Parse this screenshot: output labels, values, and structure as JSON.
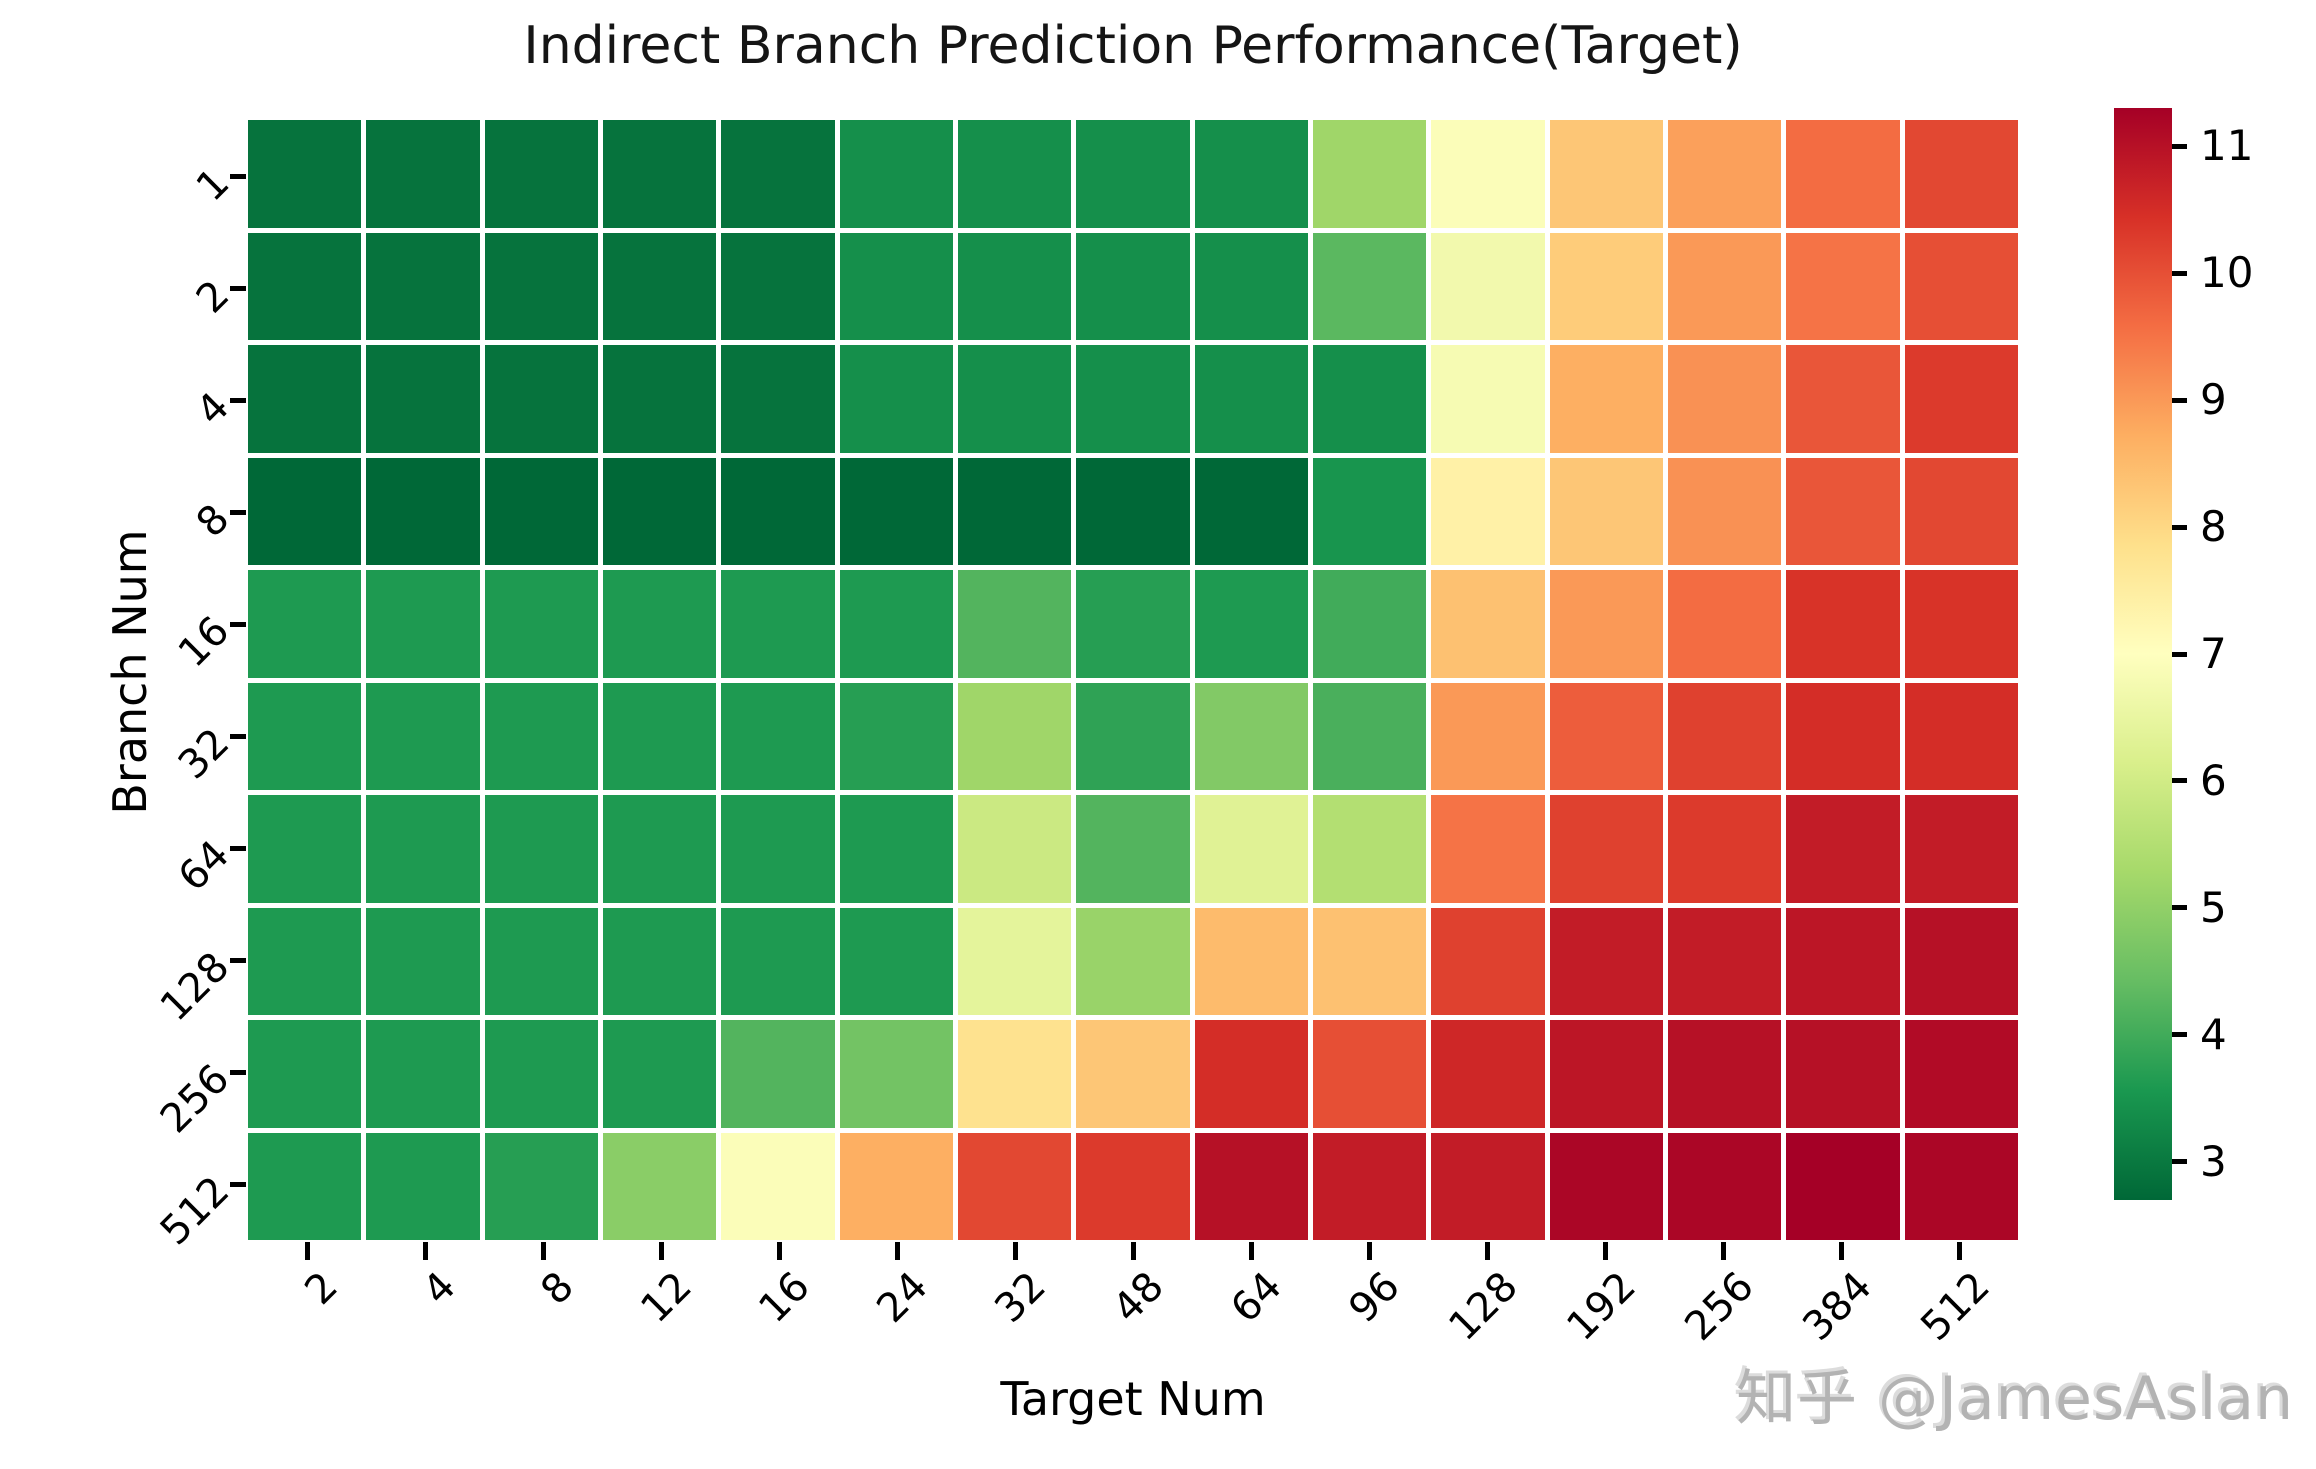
{
  "title": "Indirect Branch Prediction Performance(Target)",
  "watermark": "知乎 @JamesAslan",
  "chart_data": {
    "type": "heatmap",
    "title": "Indirect Branch Prediction Performance(Target)",
    "xlabel": "Target Num",
    "ylabel": "Branch Num",
    "x_categories": [
      "2",
      "4",
      "8",
      "12",
      "16",
      "24",
      "32",
      "48",
      "64",
      "96",
      "128",
      "192",
      "256",
      "384",
      "512"
    ],
    "y_categories": [
      "1",
      "2",
      "4",
      "8",
      "16",
      "32",
      "64",
      "128",
      "256",
      "512"
    ],
    "values": [
      [
        2.9,
        2.9,
        2.9,
        2.9,
        2.9,
        3.4,
        3.4,
        3.4,
        3.4,
        5.2,
        6.9,
        8.3,
        8.9,
        9.6,
        10.1
      ],
      [
        2.9,
        2.9,
        2.9,
        2.9,
        2.9,
        3.4,
        3.4,
        3.4,
        3.4,
        4.3,
        6.7,
        8.2,
        9.0,
        9.5,
        10.0
      ],
      [
        2.9,
        2.9,
        2.9,
        2.9,
        2.9,
        3.4,
        3.4,
        3.4,
        3.4,
        3.4,
        6.8,
        8.7,
        9.1,
        9.9,
        10.3
      ],
      [
        2.7,
        2.7,
        2.7,
        2.7,
        2.7,
        2.7,
        2.7,
        2.7,
        2.7,
        3.5,
        7.4,
        8.3,
        9.1,
        9.9,
        10.1
      ],
      [
        3.6,
        3.6,
        3.6,
        3.6,
        3.6,
        3.6,
        4.2,
        3.7,
        3.6,
        4.0,
        8.4,
        9.0,
        9.6,
        10.4,
        10.4
      ],
      [
        3.6,
        3.6,
        3.6,
        3.6,
        3.6,
        3.7,
        5.2,
        3.8,
        4.8,
        4.1,
        9.0,
        9.8,
        10.2,
        10.5,
        10.5
      ],
      [
        3.6,
        3.6,
        3.6,
        3.6,
        3.6,
        3.6,
        5.9,
        4.2,
        6.3,
        5.5,
        9.5,
        10.2,
        10.3,
        10.8,
        10.8
      ],
      [
        3.6,
        3.6,
        3.6,
        3.6,
        3.6,
        3.6,
        6.4,
        5.1,
        8.5,
        8.4,
        10.2,
        10.8,
        10.8,
        10.9,
        11.0
      ],
      [
        3.6,
        3.6,
        3.6,
        3.6,
        4.2,
        4.6,
        7.8,
        8.3,
        10.5,
        10.0,
        10.6,
        10.9,
        11.0,
        11.0,
        11.1
      ],
      [
        3.6,
        3.6,
        3.7,
        4.9,
        6.9,
        8.7,
        10.1,
        10.3,
        11.0,
        10.8,
        10.8,
        11.2,
        11.2,
        11.3,
        11.2
      ]
    ],
    "vmin": 2.7,
    "vmax": 11.3,
    "colormap": "RdYlGn_r",
    "colormap_stops_low_to_high": [
      "#006837",
      "#1a9850",
      "#66bd63",
      "#a6d96a",
      "#d9ef8b",
      "#ffffbf",
      "#fee08b",
      "#fdae61",
      "#f46d43",
      "#d73027",
      "#a50026"
    ],
    "colorbar_ticks": [
      "3",
      "4",
      "5",
      "6",
      "7",
      "8",
      "9",
      "10",
      "11"
    ],
    "cell_line_color": "#ffffff",
    "grid": "off",
    "legend_position": "right-colorbar"
  }
}
